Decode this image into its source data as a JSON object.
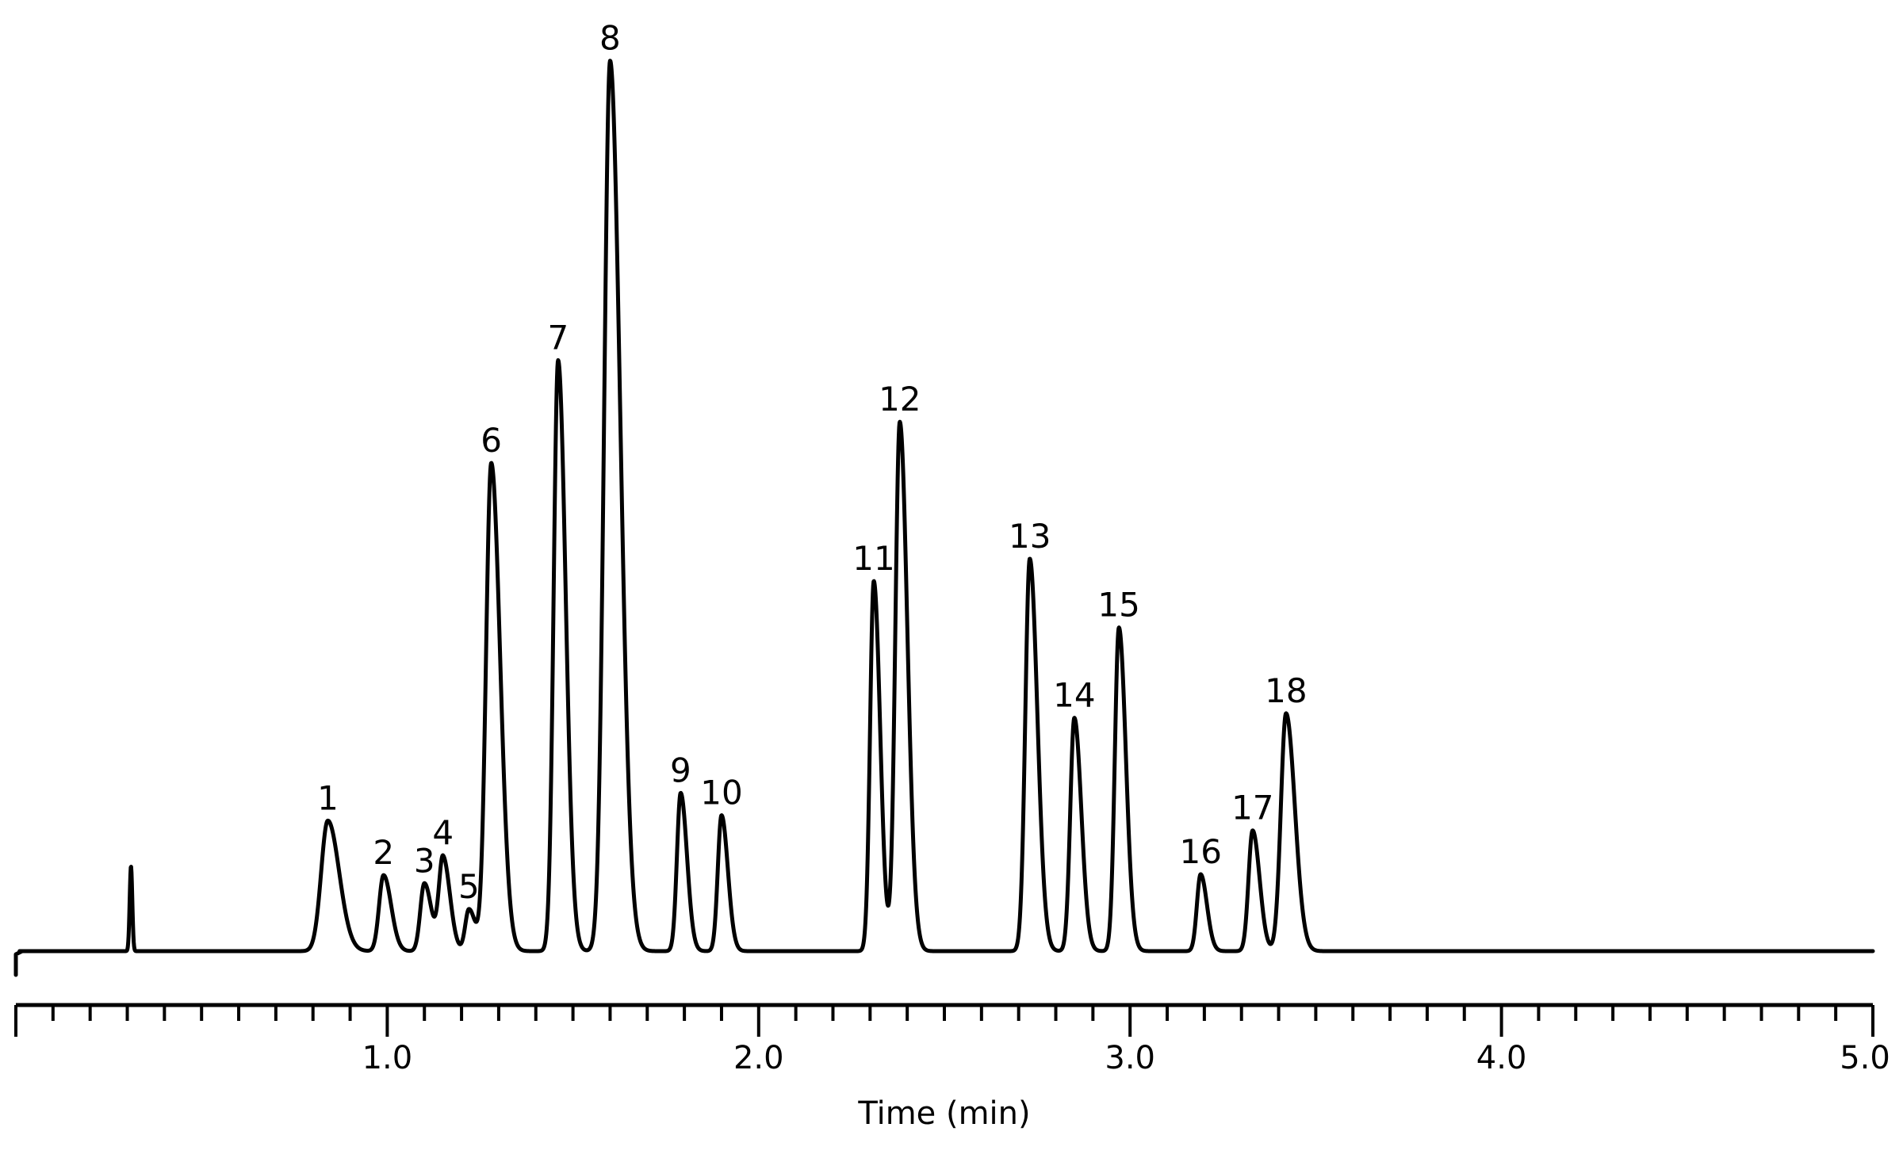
{
  "chart_data": {
    "type": "line",
    "title": "",
    "xlabel": "Time (min)",
    "ylabel": "",
    "xlim": [
      0,
      5.0
    ],
    "ylim": [
      0,
      100
    ],
    "y_axis_shown": false,
    "grid": false,
    "legend": "none",
    "x_tick_labels": [
      {
        "value": 1.0,
        "label": "1.0"
      },
      {
        "value": 2.0,
        "label": "2.0"
      },
      {
        "value": 3.0,
        "label": "3.0"
      },
      {
        "value": 4.0,
        "label": "4.0"
      },
      {
        "value": 5.0,
        "label": "5.0"
      }
    ],
    "minor_tick_step": 0.1,
    "baseline": 0,
    "injection_spike": {
      "t": 0.31,
      "height": 9.5
    },
    "peaks": [
      {
        "label": "1",
        "t": 0.84,
        "height": 14.6,
        "sigma": 0.018
      },
      {
        "label": "2",
        "t": 0.99,
        "height": 8.5,
        "sigma": 0.012
      },
      {
        "label": "3",
        "t": 1.1,
        "height": 7.6,
        "sigma": 0.011
      },
      {
        "label": "4",
        "t": 1.15,
        "height": 10.5,
        "sigma": 0.011
      },
      {
        "label": "5",
        "t": 1.22,
        "height": 4.7,
        "sigma": 0.01
      },
      {
        "label": "6",
        "t": 1.28,
        "height": 54.6,
        "sigma": 0.014
      },
      {
        "label": "7",
        "t": 1.46,
        "height": 66.1,
        "sigma": 0.012
      },
      {
        "label": "8",
        "t": 1.6,
        "height": 99.6,
        "sigma": 0.016
      },
      {
        "label": "9",
        "t": 1.79,
        "height": 17.7,
        "sigma": 0.01
      },
      {
        "label": "10",
        "t": 1.9,
        "height": 15.2,
        "sigma": 0.01
      },
      {
        "label": "11",
        "t": 2.31,
        "height": 41.4,
        "sigma": 0.01
      },
      {
        "label": "12",
        "t": 2.38,
        "height": 59.2,
        "sigma": 0.012
      },
      {
        "label": "13",
        "t": 2.73,
        "height": 43.9,
        "sigma": 0.012
      },
      {
        "label": "14",
        "t": 2.85,
        "height": 26.1,
        "sigma": 0.011
      },
      {
        "label": "15",
        "t": 2.97,
        "height": 36.2,
        "sigma": 0.011
      },
      {
        "label": "16",
        "t": 3.19,
        "height": 8.6,
        "sigma": 0.01
      },
      {
        "label": "17",
        "t": 3.33,
        "height": 13.5,
        "sigma": 0.011
      },
      {
        "label": "18",
        "t": 3.42,
        "height": 26.6,
        "sigma": 0.014
      }
    ]
  }
}
